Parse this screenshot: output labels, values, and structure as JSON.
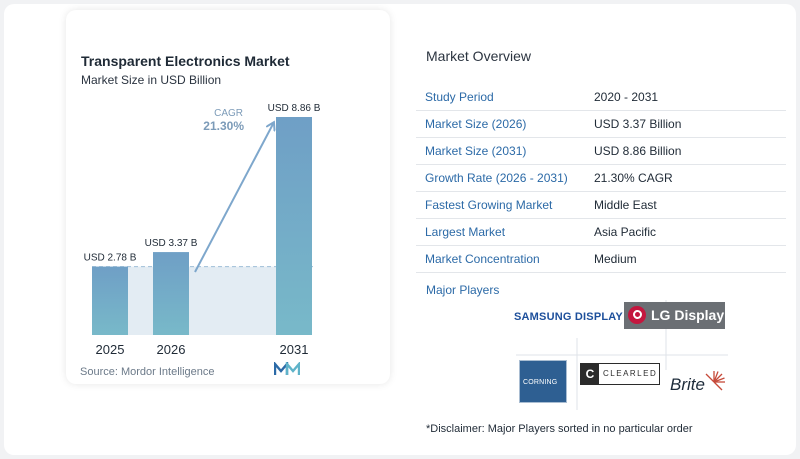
{
  "chart_data": {
    "type": "bar",
    "title": "Transparent Electronics Market",
    "subtitle": "Market Size in USD Billion",
    "categories": [
      "2025",
      "2026",
      "2031"
    ],
    "values": [
      2.78,
      3.37,
      8.86
    ],
    "data_labels": [
      "USD 2.78 B",
      "USD 3.37 B",
      "USD 8.86 B"
    ],
    "cagr_label": "CAGR",
    "cagr_value": "21.30%",
    "ylim": [
      0,
      9.2
    ],
    "grid": false,
    "colors": {
      "bar_top": "#6f9fc6",
      "bar_bottom": "#78b9c9",
      "band": "#e3ecf3",
      "arrow": "#7ea7cc",
      "cagr_text": "#7c9bb8"
    }
  },
  "source": "Source: Mordor Intelligence",
  "logo_icon": "mordor-intelligence-logo-icon",
  "overview": {
    "title": "Market Overview",
    "rows": [
      {
        "key": "Study Period",
        "value": "2020 - 2031"
      },
      {
        "key": "Market Size (2026)",
        "value": "USD 3.37 Billion"
      },
      {
        "key": "Market Size (2031)",
        "value": "USD 8.86 Billion"
      },
      {
        "key": "Growth Rate (2026 - 2031)",
        "value": "21.30% CAGR"
      },
      {
        "key": "Fastest Growing Market",
        "value": "Middle East"
      },
      {
        "key": "Largest Market",
        "value": "Asia Pacific"
      },
      {
        "key": "Market Concentration",
        "value": "Medium"
      }
    ]
  },
  "major_players": {
    "label": "Major Players",
    "logos": [
      "SAMSUNG DISPLAY",
      "LG Display",
      "CORNING",
      "CLEARLED",
      "Brite"
    ]
  },
  "disclaimer": "*Disclaimer: Major Players sorted in no particular order"
}
